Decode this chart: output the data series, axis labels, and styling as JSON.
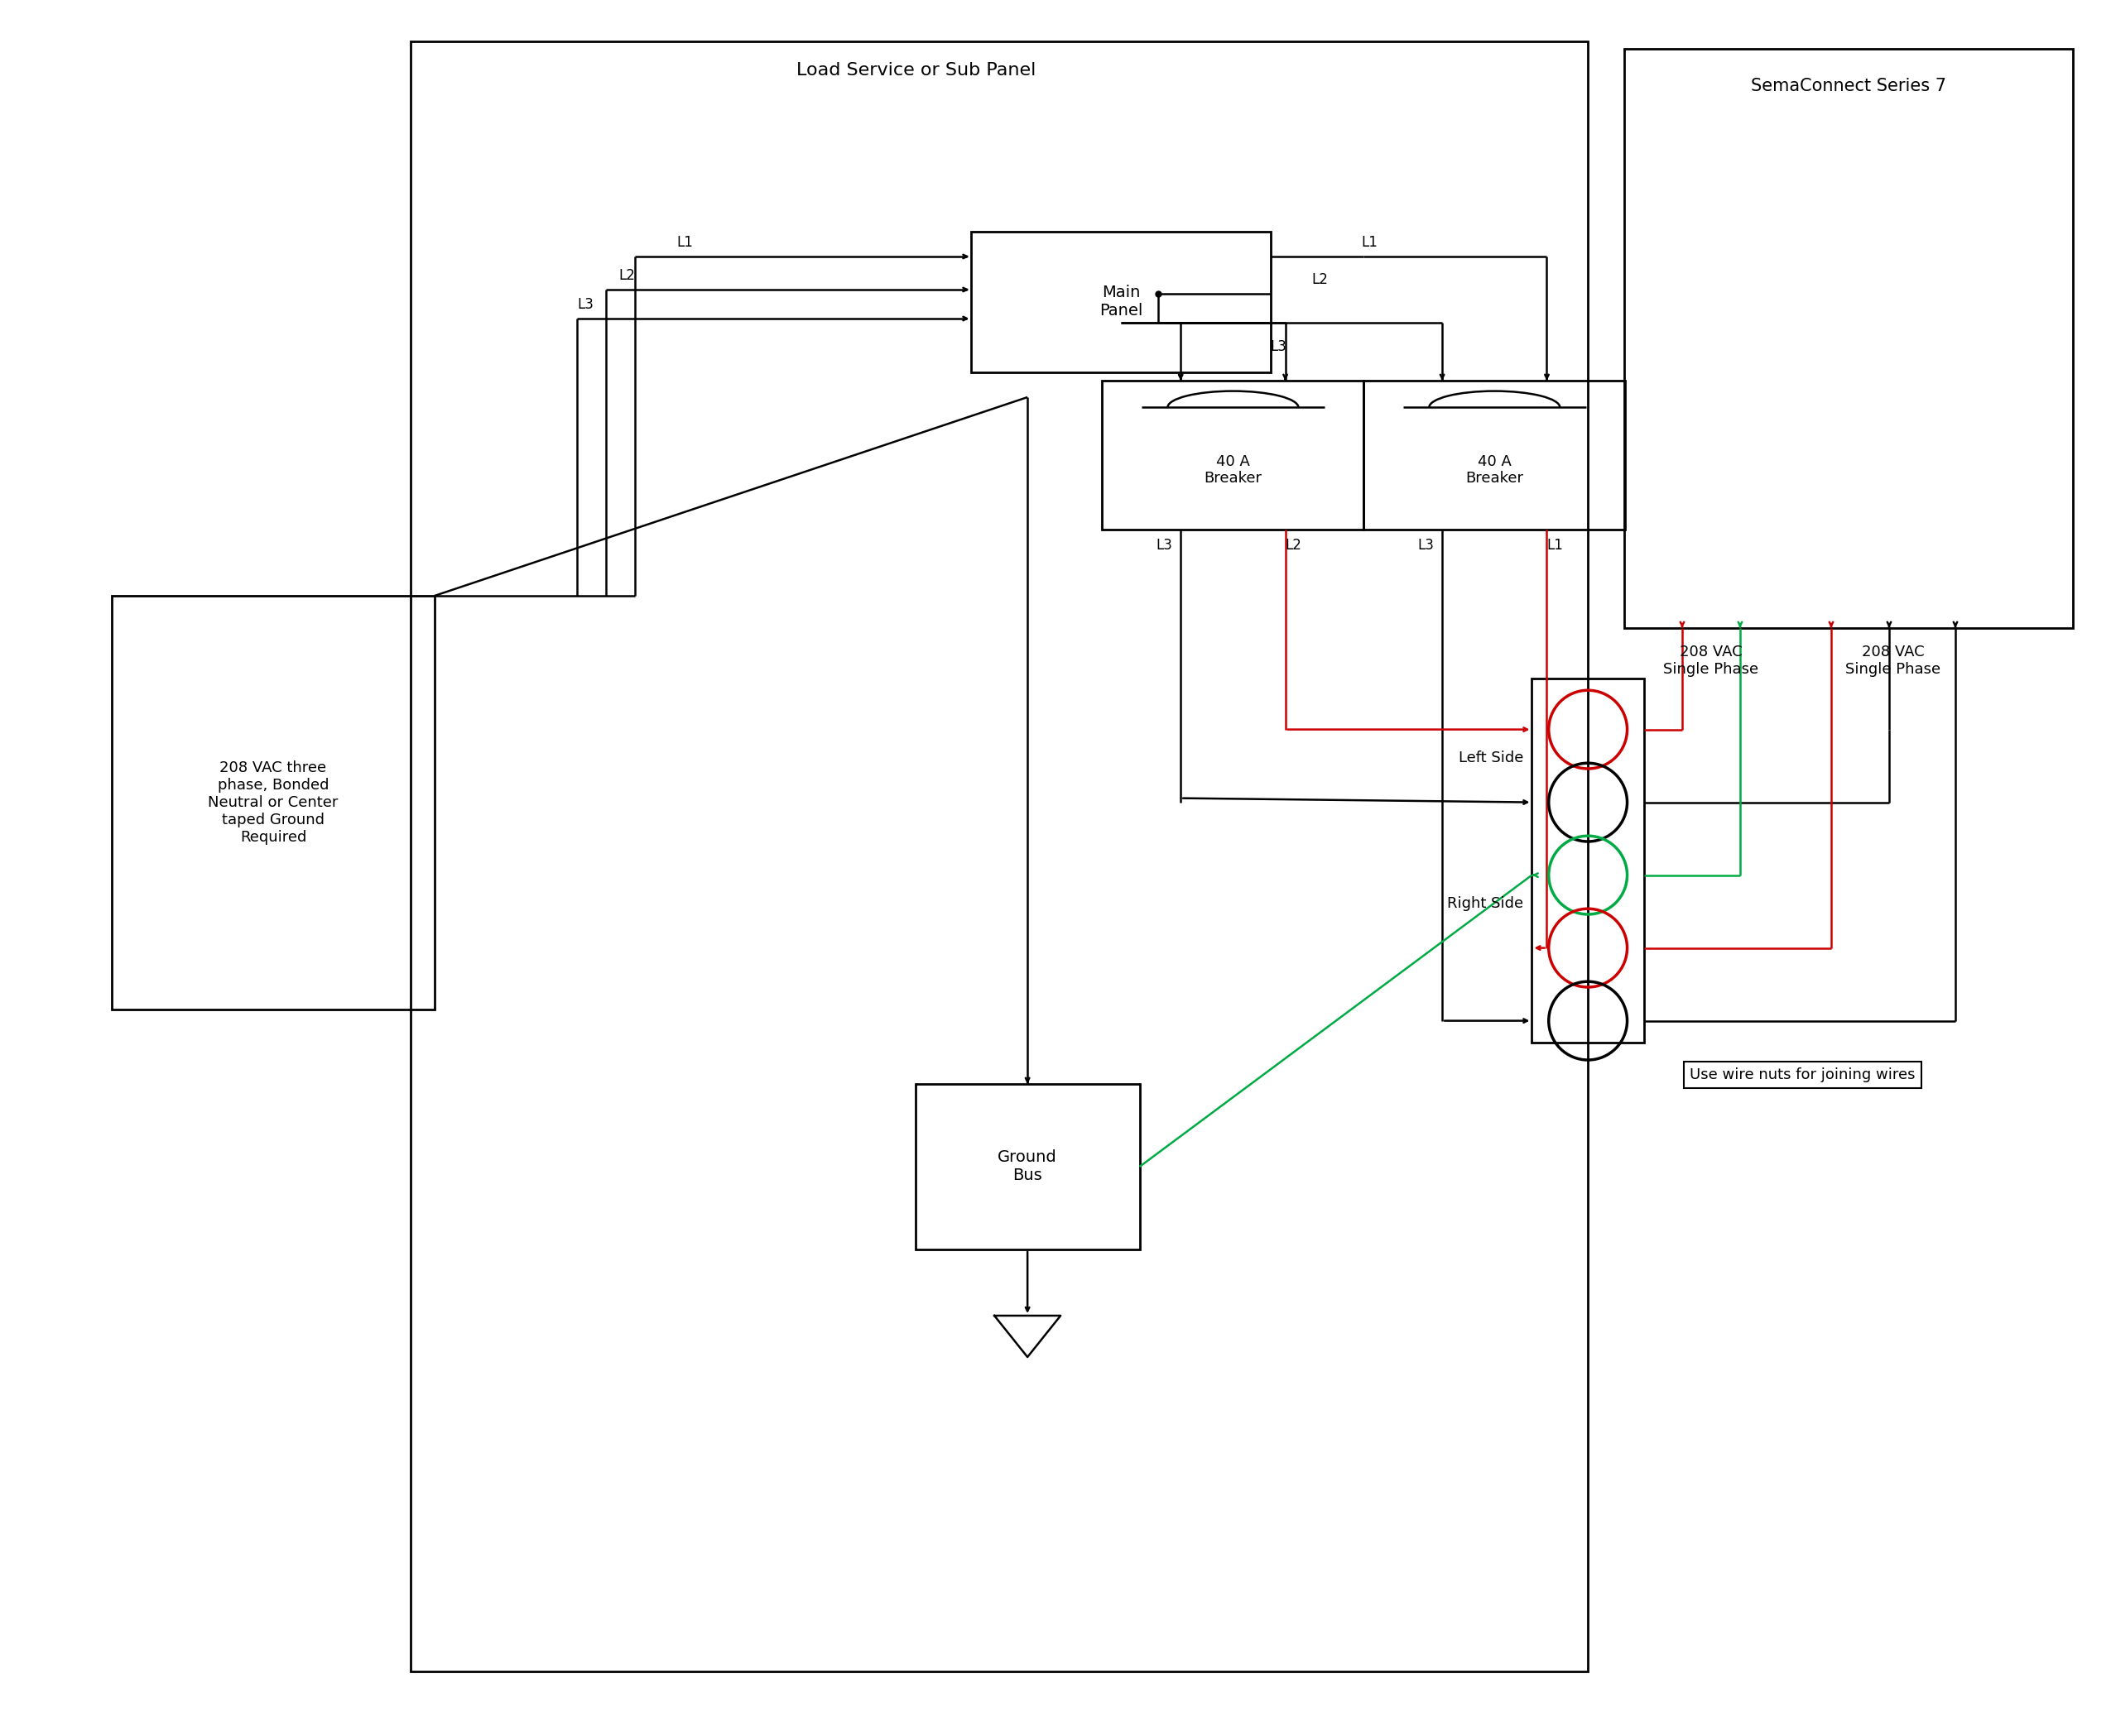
{
  "bg_color": "#ffffff",
  "line_color": "#000000",
  "red_color": "#cc0000",
  "green_color": "#00aa44",
  "fig_width": 25.5,
  "fig_height": 20.98,
  "panel_label": "Load Service or Sub Panel",
  "main_panel_label": "Main\nPanel",
  "ground_bus_label": "Ground\nBus",
  "source_box_label": "208 VAC three\nphase, Bonded\nNeutral or Center\ntaped Ground\nRequired",
  "breaker1_label": "40 A\nBreaker",
  "breaker2_label": "40 A\nBreaker",
  "left_side_label": "Left Side",
  "right_side_label": "Right Side",
  "wire_nut_label": "Use wire nuts for joining wires",
  "vac_left_label": "208 VAC\nSingle Phase",
  "vac_right_label": "208 VAC\nSingle Phase",
  "sema_title": "SemaConnect Series 7"
}
